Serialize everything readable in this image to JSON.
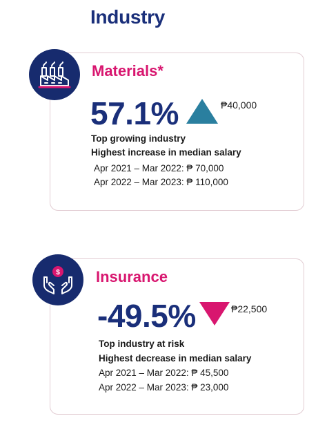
{
  "page": {
    "title": "Industry"
  },
  "cards": [
    {
      "name": "Materials*",
      "percent": "57.1%",
      "direction": "up",
      "amount": "₱40,000",
      "headline": "Top growing industry",
      "subheadline": "Highest increase in median salary",
      "periods": [
        "Apr 2021 – Mar 2022: ₱ 70,000",
        "Apr 2022 – Mar 2023: ₱ 110,000"
      ],
      "icon": "factory-icon",
      "arrow_color": "#2a7f9f"
    },
    {
      "name": "Insurance",
      "percent": "-49.5%",
      "direction": "down",
      "amount": "₱22,500",
      "headline": "Top industry at risk",
      "subheadline": "Highest decrease in median salary",
      "periods": [
        "Apr 2021 – Mar 2022: ₱ 45,500",
        "Apr 2022 – Mar 2023: ₱ 23,000"
      ],
      "icon": "hands-coin-icon",
      "arrow_color": "#d8166f"
    }
  ],
  "colors": {
    "navy": "#1a2f7a",
    "magenta": "#d8166f",
    "teal": "#2a7f9f",
    "badge_bg": "#172b6e"
  }
}
